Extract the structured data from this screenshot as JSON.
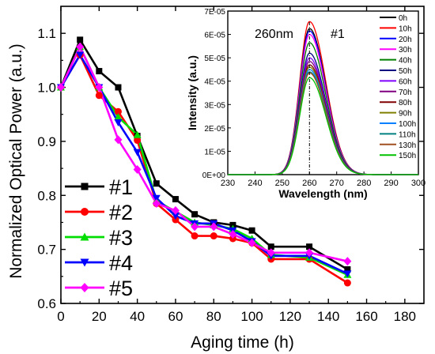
{
  "chart_data": [
    {
      "type": "line",
      "title": "",
      "xlabel": "Aging time (h)",
      "ylabel": "Normalized Optical Power (a.u.)",
      "xlim": [
        0,
        190
      ],
      "ylim": [
        0.6,
        1.15
      ],
      "xticks": [
        "0",
        "20",
        "40",
        "60",
        "80",
        "100",
        "120",
        "140",
        "160",
        "180"
      ],
      "yticks": [
        "0.6",
        "0.7",
        "0.8",
        "0.9",
        "1.0",
        "1.1"
      ],
      "grid": false,
      "legend_position": "bottom-left",
      "x": [
        0,
        10,
        20,
        30,
        40,
        50,
        60,
        70,
        80,
        90,
        100,
        110,
        130,
        150
      ],
      "series": [
        {
          "name": "#1",
          "color": "#000000",
          "marker": "square",
          "values": [
            1.0,
            1.088,
            1.03,
            1.0,
            0.91,
            0.822,
            0.793,
            0.765,
            0.75,
            0.745,
            0.735,
            0.705,
            0.705,
            0.663
          ]
        },
        {
          "name": "#2",
          "color": "#ff0000",
          "marker": "circle",
          "values": [
            1.0,
            1.06,
            0.985,
            0.955,
            0.902,
            0.785,
            0.755,
            0.725,
            0.725,
            0.72,
            0.712,
            0.682,
            0.682,
            0.638
          ]
        },
        {
          "name": "#3",
          "color": "#00dd00",
          "marker": "triangle-up",
          "values": [
            1.0,
            1.075,
            1.0,
            0.945,
            0.912,
            0.79,
            0.77,
            0.75,
            0.745,
            0.738,
            0.72,
            0.69,
            0.685,
            0.653
          ]
        },
        {
          "name": "#4",
          "color": "#0000ff",
          "marker": "triangle-down",
          "values": [
            1.0,
            1.06,
            1.0,
            0.935,
            0.88,
            0.795,
            0.762,
            0.748,
            0.748,
            0.735,
            0.715,
            0.688,
            0.688,
            0.655
          ]
        },
        {
          "name": "#5",
          "color": "#ff00ff",
          "marker": "diamond",
          "values": [
            1.0,
            1.075,
            1.0,
            0.903,
            0.848,
            0.785,
            0.772,
            0.742,
            0.742,
            0.728,
            0.712,
            0.694,
            0.694,
            0.678
          ]
        }
      ]
    },
    {
      "type": "line",
      "title": "",
      "xlabel": "Wavelength (nm)",
      "ylabel": "Intensity (a.u.)",
      "xlim": [
        230,
        300
      ],
      "ylim": [
        0,
        7e-05
      ],
      "xticks": [
        "230",
        "240",
        "250",
        "260",
        "270",
        "280",
        "290",
        "300"
      ],
      "yticks": [
        "0E+00",
        "1E-05",
        "2E-05",
        "3E-05",
        "4E-05",
        "5E-05",
        "6E-05",
        "7E-05"
      ],
      "grid": false,
      "legend_position": "right",
      "annotations": [
        "260nm",
        "#1"
      ],
      "peak_wavelength": 260,
      "peak_width_nm": 4.8,
      "series": [
        {
          "name": "0h",
          "color": "#000000",
          "peak": 6.25e-05
        },
        {
          "name": "10h",
          "color": "#ff0000",
          "peak": 6.55e-05
        },
        {
          "name": "20h",
          "color": "#0000ff",
          "peak": 6.15e-05
        },
        {
          "name": "30h",
          "color": "#ff00ff",
          "peak": 6e-05
        },
        {
          "name": "40h",
          "color": "#008000",
          "peak": 5.65e-05
        },
        {
          "name": "50h",
          "color": "#000080",
          "peak": 5.2e-05
        },
        {
          "name": "60h",
          "color": "#8000ff",
          "peak": 5e-05
        },
        {
          "name": "70h",
          "color": "#800080",
          "peak": 4.85e-05
        },
        {
          "name": "80h",
          "color": "#800000",
          "peak": 4.7e-05
        },
        {
          "name": "90h",
          "color": "#808000",
          "peak": 4.6e-05
        },
        {
          "name": "100h",
          "color": "#0080ff",
          "peak": 4.5e-05
        },
        {
          "name": "110h",
          "color": "#008080",
          "peak": 4.4e-05
        },
        {
          "name": "130h",
          "color": "#a05020",
          "peak": 4.35e-05
        },
        {
          "name": "150h",
          "color": "#00c000",
          "peak": 4.15e-05
        }
      ]
    }
  ]
}
